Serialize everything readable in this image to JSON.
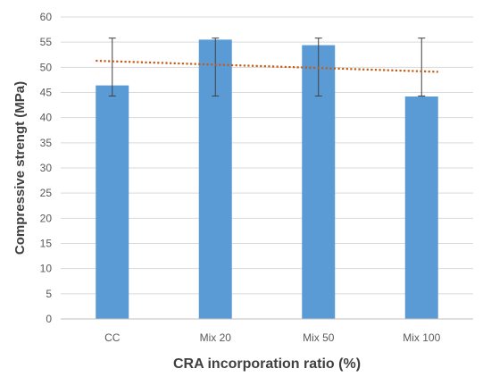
{
  "chart_data": {
    "type": "bar",
    "categories": [
      "CC",
      "Mix 20",
      "Mix 50",
      "Mix 100"
    ],
    "values": [
      46.4,
      55.5,
      54.4,
      44.2
    ],
    "error_bars": [
      {
        "low": 44.3,
        "high": 55.8
      },
      {
        "low": 44.3,
        "high": 55.8
      },
      {
        "low": 44.3,
        "high": 55.8
      },
      {
        "low": 44.3,
        "high": 55.8
      }
    ],
    "trendline": {
      "type": "linear",
      "start": 51.3,
      "end": 49.1
    },
    "xlabel": "CRA incorporation ratio (%)",
    "ylabel": "Compressive strengt (MPa)",
    "ylim": [
      0,
      60
    ],
    "yticks": [
      "0",
      "5",
      "10",
      "15",
      "20",
      "25",
      "30",
      "35",
      "40",
      "45",
      "50",
      "55",
      "60"
    ],
    "grid": true,
    "legend": "none",
    "colors": {
      "bar": "#5b9bd5",
      "trendline": "#c55a11",
      "error_bar": "#404040",
      "grid": "#d9d9d9"
    }
  }
}
